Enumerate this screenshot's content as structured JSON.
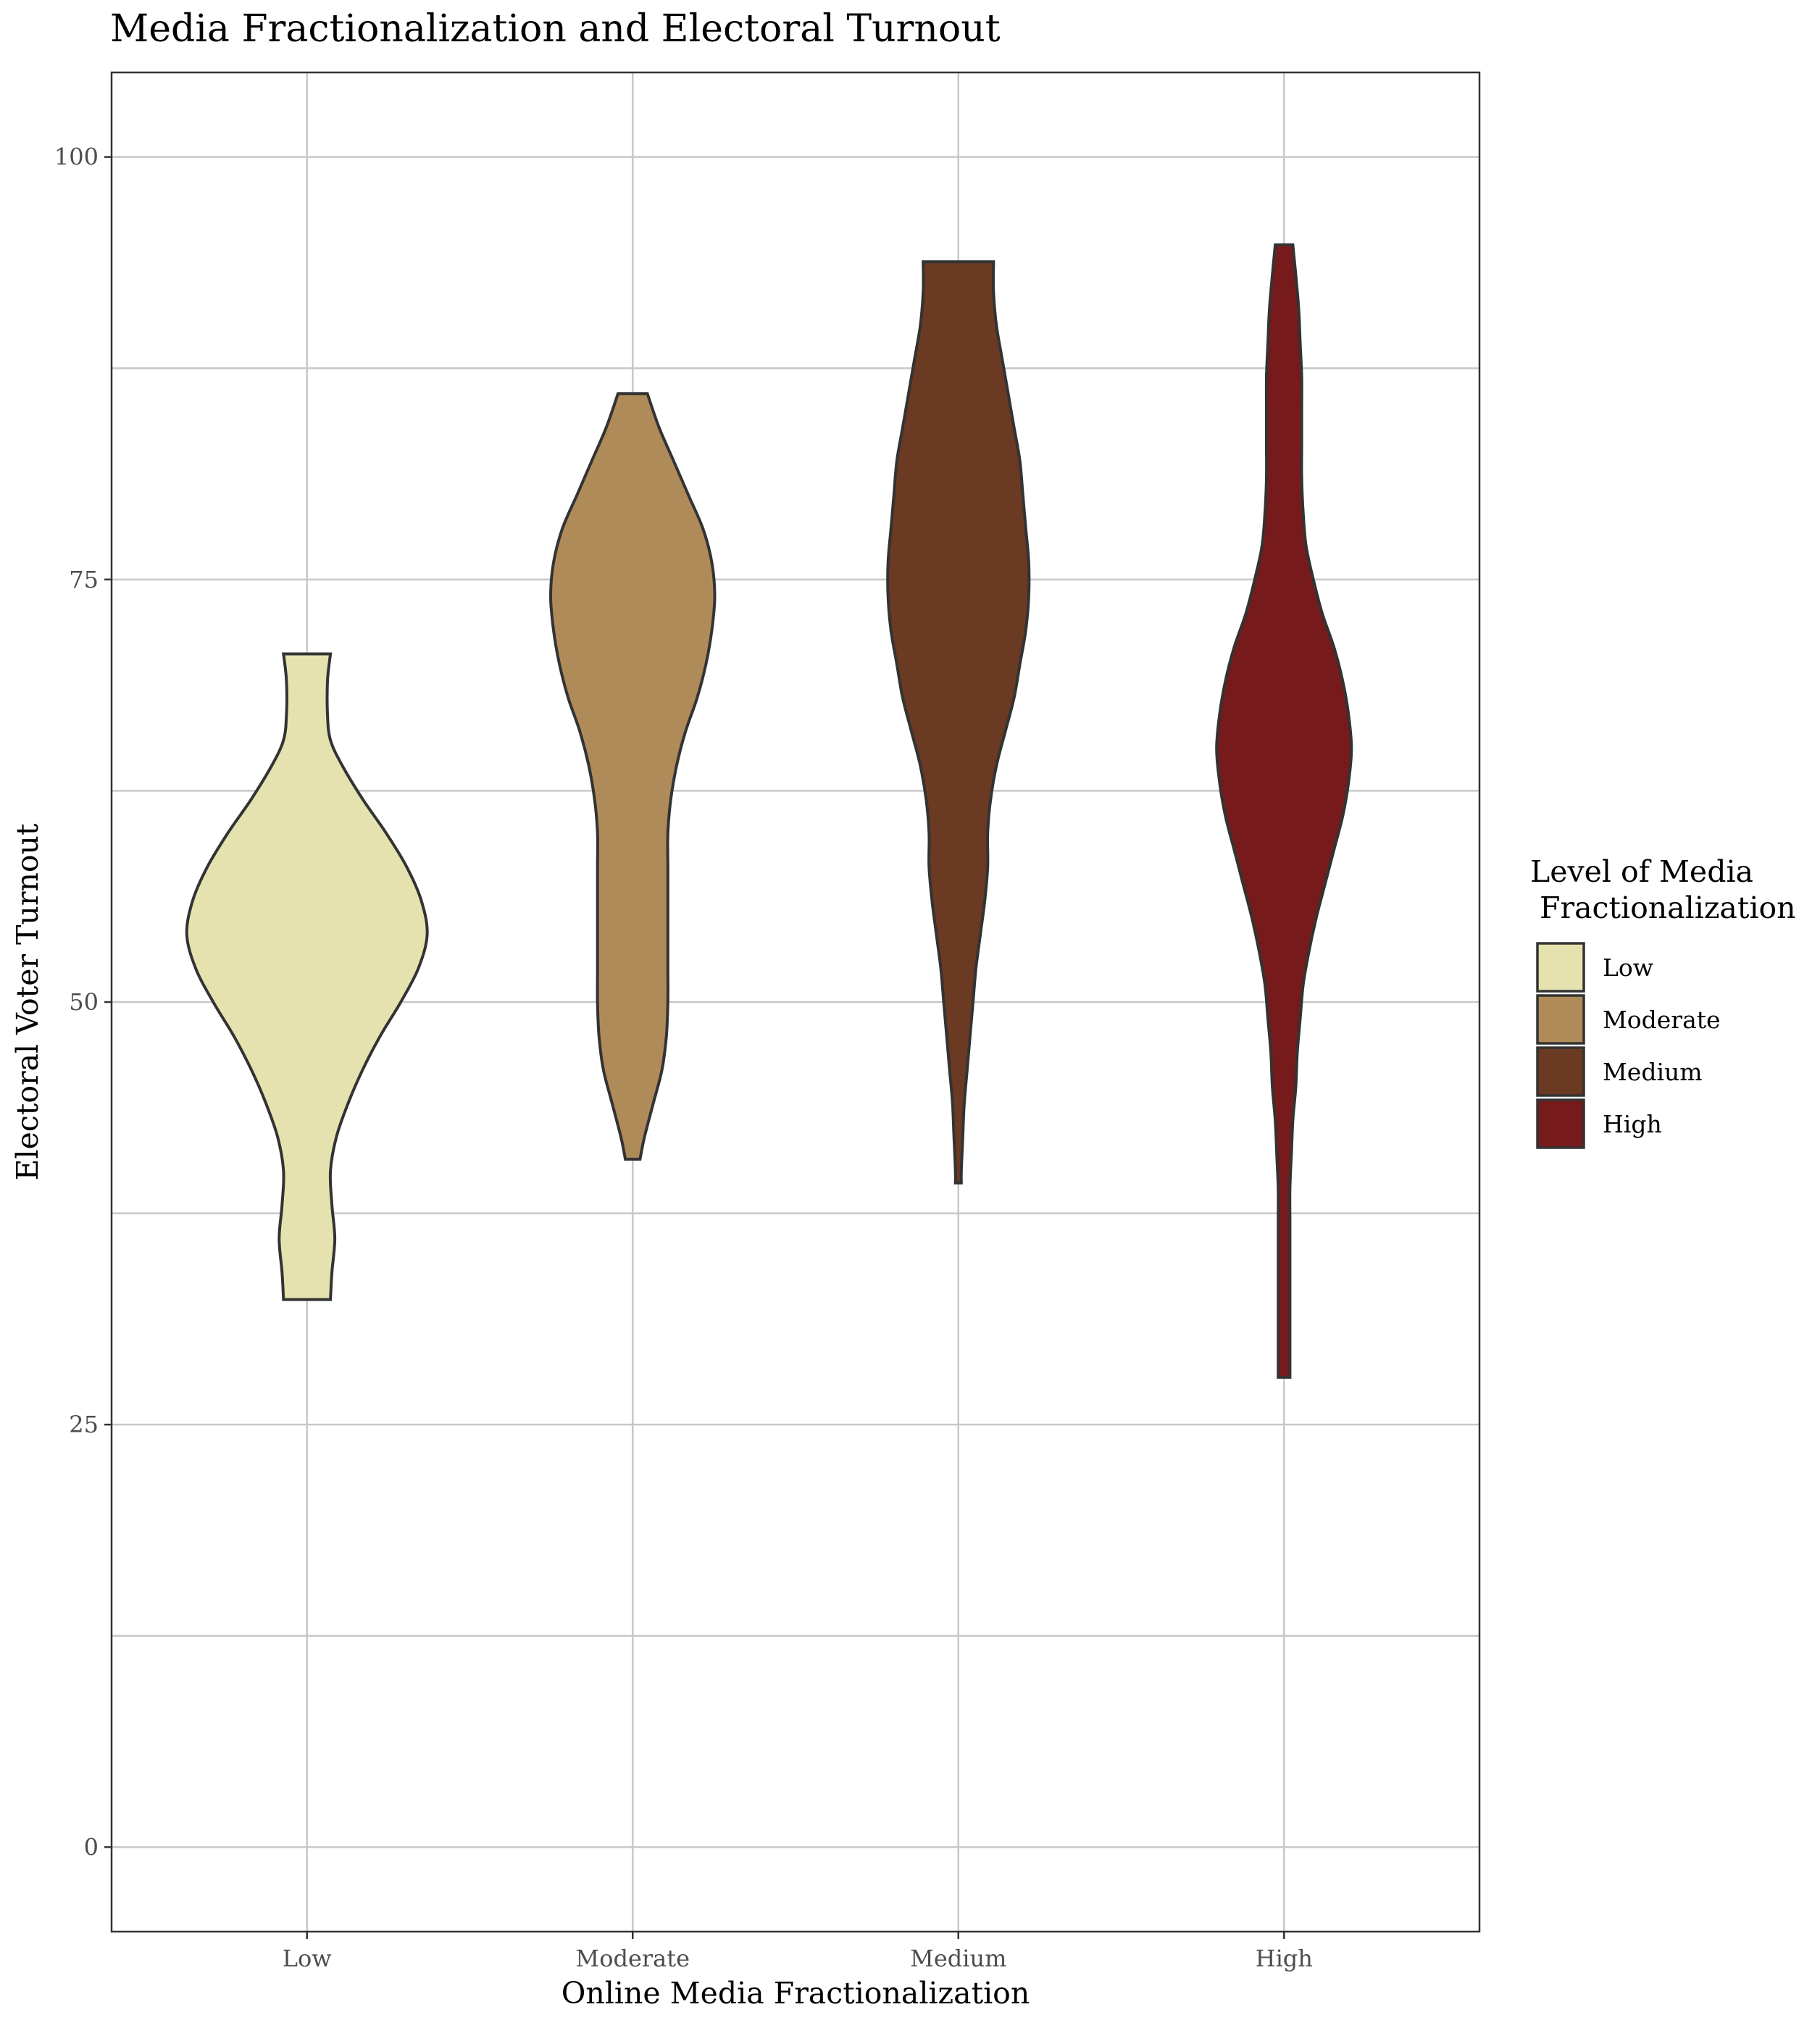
{
  "chart_data": {
    "type": "violin",
    "title": "Media Fractionalization and Electoral Turnout",
    "xlabel": "Online Media Fractionalization",
    "ylabel": "Electoral Voter Turnout",
    "ylim": [
      -5,
      105
    ],
    "yticks": [
      0,
      25,
      50,
      75,
      100
    ],
    "categories": [
      "Low",
      "Moderate",
      "Medium",
      "High"
    ],
    "grid": true,
    "legend": {
      "title_line1": "Level of Media",
      "title_line2": " Fractionalization",
      "placement": "right",
      "entries": [
        "Low",
        "Moderate",
        "Medium",
        "High"
      ]
    },
    "series": [
      {
        "name": "Low",
        "color": "#E6E2AF",
        "ymin": 32.4,
        "ymax": 70.6,
        "profile": [
          [
            70.6,
            0.16
          ],
          [
            69,
            0.14
          ],
          [
            67,
            0.14
          ],
          [
            65.5,
            0.16
          ],
          [
            64,
            0.24
          ],
          [
            62,
            0.38
          ],
          [
            60,
            0.54
          ],
          [
            58,
            0.68
          ],
          [
            56,
            0.78
          ],
          [
            54,
            0.82
          ],
          [
            52,
            0.76
          ],
          [
            50,
            0.64
          ],
          [
            48,
            0.5
          ],
          [
            46,
            0.38
          ],
          [
            44,
            0.28
          ],
          [
            42,
            0.2
          ],
          [
            40,
            0.16
          ],
          [
            38,
            0.17
          ],
          [
            36,
            0.19
          ],
          [
            34,
            0.17
          ],
          [
            32.4,
            0.16
          ]
        ]
      },
      {
        "name": "Moderate",
        "color": "#B08B5A",
        "ymin": 40.7,
        "ymax": 86.0,
        "profile": [
          [
            86,
            0.1
          ],
          [
            84,
            0.18
          ],
          [
            82,
            0.28
          ],
          [
            80,
            0.38
          ],
          [
            78,
            0.48
          ],
          [
            76,
            0.54
          ],
          [
            74,
            0.56
          ],
          [
            72,
            0.54
          ],
          [
            70,
            0.5
          ],
          [
            68,
            0.44
          ],
          [
            66,
            0.36
          ],
          [
            64,
            0.3
          ],
          [
            62,
            0.26
          ],
          [
            60,
            0.24
          ],
          [
            58,
            0.24
          ],
          [
            56,
            0.24
          ],
          [
            54,
            0.24
          ],
          [
            52,
            0.24
          ],
          [
            50,
            0.24
          ],
          [
            48,
            0.23
          ],
          [
            46,
            0.2
          ],
          [
            44,
            0.14
          ],
          [
            42,
            0.08
          ],
          [
            40.7,
            0.05
          ]
        ]
      },
      {
        "name": "Medium",
        "color": "#6B3A22",
        "ymin": 39.3,
        "ymax": 93.8,
        "profile": [
          [
            93.8,
            0.24
          ],
          [
            92,
            0.24
          ],
          [
            90,
            0.26
          ],
          [
            88,
            0.3
          ],
          [
            86,
            0.34
          ],
          [
            84,
            0.38
          ],
          [
            82,
            0.42
          ],
          [
            80,
            0.44
          ],
          [
            78,
            0.46
          ],
          [
            76,
            0.48
          ],
          [
            74,
            0.48
          ],
          [
            72,
            0.46
          ],
          [
            70,
            0.42
          ],
          [
            68,
            0.38
          ],
          [
            66,
            0.32
          ],
          [
            64,
            0.26
          ],
          [
            62,
            0.22
          ],
          [
            60,
            0.2
          ],
          [
            58,
            0.2
          ],
          [
            56,
            0.18
          ],
          [
            54,
            0.15
          ],
          [
            52,
            0.12
          ],
          [
            50,
            0.1
          ],
          [
            48,
            0.08
          ],
          [
            46,
            0.06
          ],
          [
            44,
            0.04
          ],
          [
            42,
            0.03
          ],
          [
            40,
            0.02
          ],
          [
            39.3,
            0.02
          ]
        ]
      },
      {
        "name": "High",
        "color": "#771A1C",
        "ymin": 27.8,
        "ymax": 94.8,
        "profile": [
          [
            94.8,
            0.06
          ],
          [
            93,
            0.08
          ],
          [
            91,
            0.1
          ],
          [
            89,
            0.11
          ],
          [
            87,
            0.12
          ],
          [
            85,
            0.12
          ],
          [
            83,
            0.12
          ],
          [
            81,
            0.12
          ],
          [
            79,
            0.13
          ],
          [
            77,
            0.15
          ],
          [
            75,
            0.2
          ],
          [
            73,
            0.26
          ],
          [
            71,
            0.34
          ],
          [
            69,
            0.4
          ],
          [
            67,
            0.44
          ],
          [
            65,
            0.46
          ],
          [
            63,
            0.44
          ],
          [
            61,
            0.4
          ],
          [
            59,
            0.34
          ],
          [
            57,
            0.28
          ],
          [
            55,
            0.22
          ],
          [
            53,
            0.17
          ],
          [
            51,
            0.13
          ],
          [
            49,
            0.11
          ],
          [
            47,
            0.09
          ],
          [
            45,
            0.08
          ],
          [
            43,
            0.06
          ],
          [
            41,
            0.05
          ],
          [
            39,
            0.04
          ],
          [
            37,
            0.04
          ],
          [
            35,
            0.04
          ],
          [
            33,
            0.04
          ],
          [
            31,
            0.04
          ],
          [
            29,
            0.04
          ],
          [
            27.8,
            0.04
          ]
        ]
      }
    ]
  }
}
